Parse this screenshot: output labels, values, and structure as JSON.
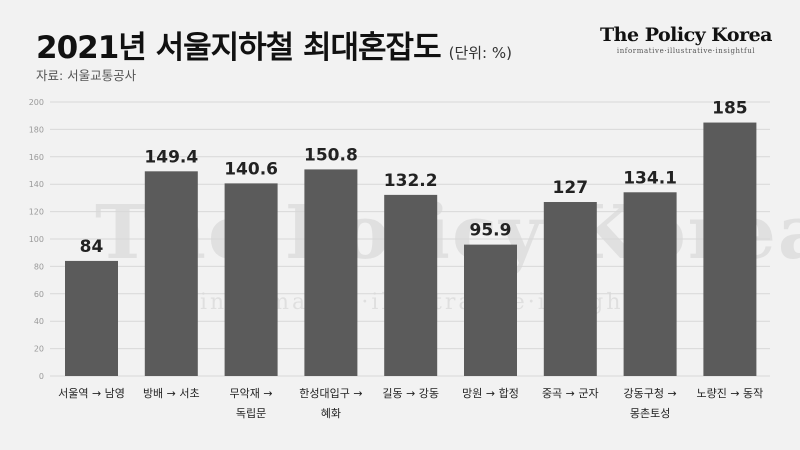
{
  "header": {
    "title": "2021년 서울지하철 최대혼잡도",
    "unit": "(단위: %)",
    "source": "자료: 서울교통공사"
  },
  "brand": {
    "name": "The Policy Korea",
    "tagline": "informative·illustrative·insightful"
  },
  "colors": {
    "bar": "#5b5b5b",
    "grid": "#d8d8d8",
    "tick": "#9a9a9a",
    "label": "#222222"
  },
  "chart_data": {
    "type": "bar",
    "title": "2021년 서울지하철 최대혼잡도",
    "xlabel": "",
    "ylabel": "",
    "ylim": [
      0,
      200
    ],
    "yticks": [
      0,
      20,
      40,
      60,
      80,
      100,
      120,
      140,
      160,
      180,
      200
    ],
    "grid": true,
    "categories": [
      "서울역 → 남영",
      "방배 → 서초",
      "무악재 → 독립문",
      "한성대입구 → 혜화",
      "길동 → 강동",
      "망원 → 합정",
      "중곡 → 군자",
      "강동구청 → 몽촌토성",
      "노량진 → 동작"
    ],
    "category_lines": [
      [
        "서울역 → 남영"
      ],
      [
        "방배 → 서초"
      ],
      [
        "무악재 →",
        "독립문"
      ],
      [
        "한성대입구 →",
        "혜화"
      ],
      [
        "길동 → 강동"
      ],
      [
        "망원 → 합정"
      ],
      [
        "중곡 → 군자"
      ],
      [
        "강동구청 →",
        "몽촌토성"
      ],
      [
        "노량진 → 동작"
      ]
    ],
    "values": [
      84,
      149.4,
      140.6,
      150.8,
      132.2,
      95.9,
      127,
      134.1,
      185
    ],
    "value_labels": [
      "84",
      "149.4",
      "140.6",
      "150.8",
      "132.2",
      "95.9",
      "127",
      "134.1",
      "185"
    ]
  }
}
